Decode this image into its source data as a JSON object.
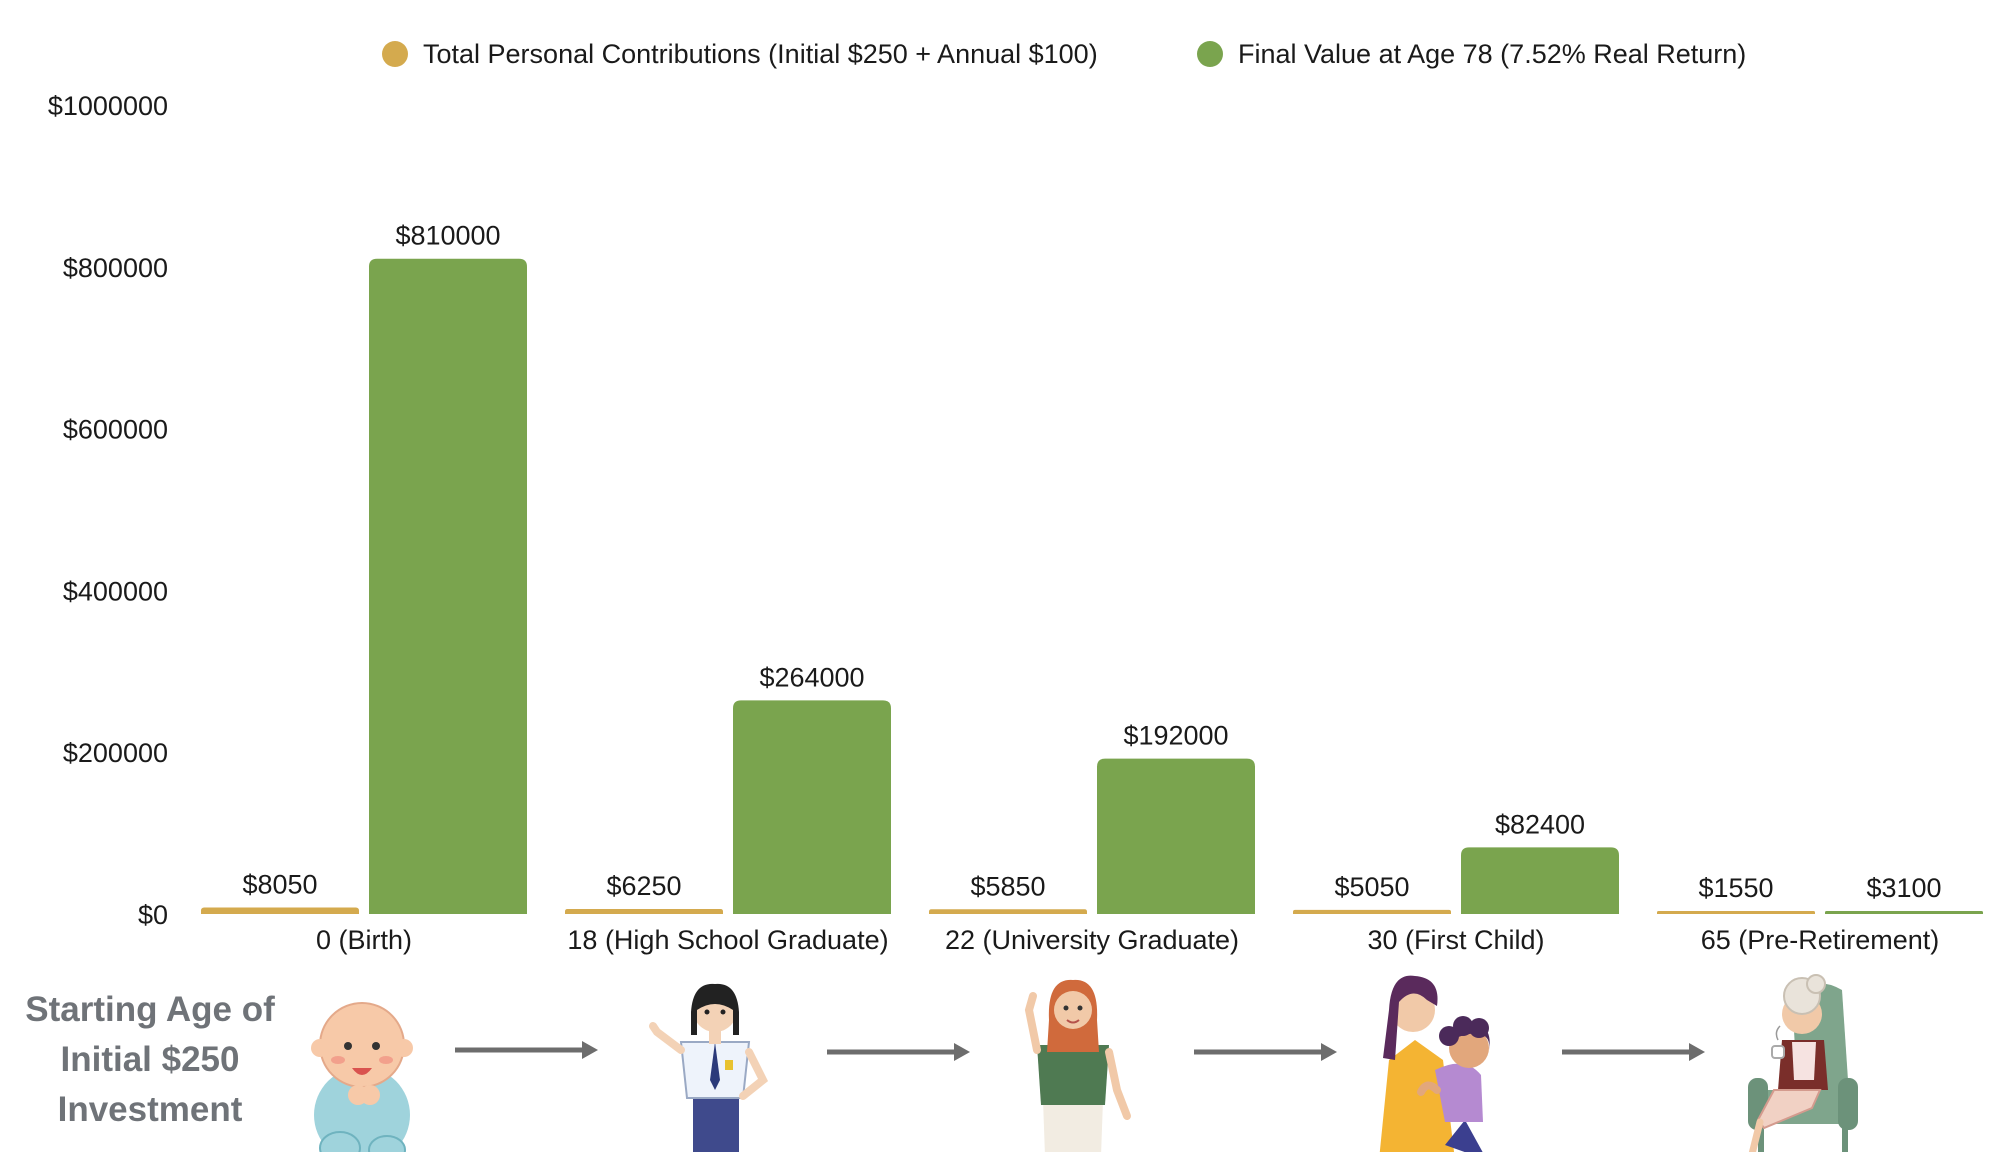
{
  "chart_data": {
    "type": "bar",
    "title": "",
    "xlabel": "",
    "ylabel": "",
    "ylim": [
      0,
      1000000
    ],
    "yticks": [
      0,
      200000,
      400000,
      600000,
      800000,
      1000000
    ],
    "ytick_labels": [
      "$0",
      "$200000",
      "$400000",
      "$600000",
      "$800000",
      "$1000000"
    ],
    "categories": [
      "0 (Birth)",
      "18 (High School Graduate)",
      "22 (University Graduate)",
      "30 (First Child)",
      "65 (Pre-Retirement)"
    ],
    "series": [
      {
        "name": "Total Personal Contributions (Initial $250 + Annual $100)",
        "color": "#d4aa4e",
        "values": [
          8050,
          6250,
          5850,
          5050,
          1550
        ],
        "labels": [
          "$8050",
          "$6250",
          "$5850",
          "$5050",
          "$1550"
        ]
      },
      {
        "name": "Final Value at Age 78 (7.52% Real Return)",
        "color": "#7aa44e",
        "values": [
          810000,
          264000,
          192000,
          82400,
          3100
        ],
        "labels": [
          "$810000",
          "$264000",
          "$192000",
          "$82400",
          "$3100"
        ]
      }
    ],
    "legend_position": "top-center",
    "grid": false
  },
  "caption": {
    "line1": "Starting Age of",
    "line2": "Initial $250",
    "line3": "Investment"
  },
  "illustrations": [
    {
      "icon": "baby-icon"
    },
    {
      "icon": "high-school-graduate-icon"
    },
    {
      "icon": "university-graduate-icon"
    },
    {
      "icon": "pregnant-couple-icon"
    },
    {
      "icon": "retiree-in-armchair-icon"
    }
  ],
  "colors": {
    "contributions": "#d4aa4e",
    "final_value": "#7aa44e",
    "arrow": "#6d6d6d",
    "caption": "#6f7378"
  }
}
